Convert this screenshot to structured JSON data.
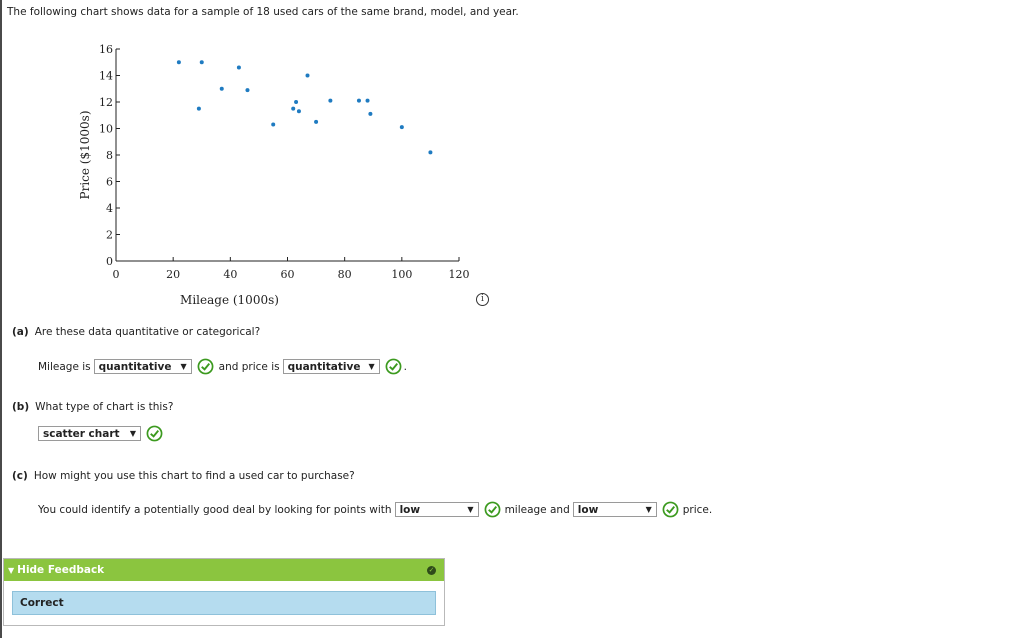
{
  "intro": "The following chart shows data for a sample of 18 used cars of the same brand, model, and year.",
  "chart_data": {
    "type": "scatter",
    "xlabel": "Mileage (1000s)",
    "ylabel": "Price ($1000s)",
    "xlim": [
      0,
      120
    ],
    "ylim": [
      0,
      16
    ],
    "x_ticks": [
      "0",
      "20",
      "40",
      "60",
      "80",
      "100",
      "120"
    ],
    "y_ticks": [
      "0",
      "2",
      "4",
      "6",
      "8",
      "10",
      "12",
      "14",
      "16"
    ],
    "grid": false,
    "x": [
      22,
      30,
      29,
      37,
      43,
      46,
      55,
      62,
      63,
      64,
      67,
      70,
      75,
      85,
      88,
      89,
      100,
      110
    ],
    "y": [
      15,
      15,
      11.5,
      13,
      14.6,
      12.9,
      10.3,
      11.5,
      12,
      11.3,
      14,
      10.5,
      12.1,
      12.1,
      12.1,
      11.1,
      10.1,
      8.2
    ],
    "point_color": "#1f7bc1"
  },
  "info_icon": "i",
  "part_a": {
    "label": "(a)",
    "question": "Are these data quantitative or categorical?",
    "text1": "Mileage is",
    "select1": "quantitative",
    "text2": "and price is",
    "select2": "quantitative",
    "end": "."
  },
  "part_b": {
    "label": "(b)",
    "question": "What type of chart is this?",
    "select": "scatter chart"
  },
  "part_c": {
    "label": "(c)",
    "question": "How might you use this chart to find a used car to purchase?",
    "text1": "You could identify a potentially good deal by looking for points with",
    "select1": "low",
    "text2": "mileage and",
    "select2": "low",
    "text3": "price."
  },
  "feedback": {
    "toggle": "Hide Feedback",
    "result": "Correct",
    "header_color": "#8bc53f",
    "body_color": "#b5dcef"
  }
}
